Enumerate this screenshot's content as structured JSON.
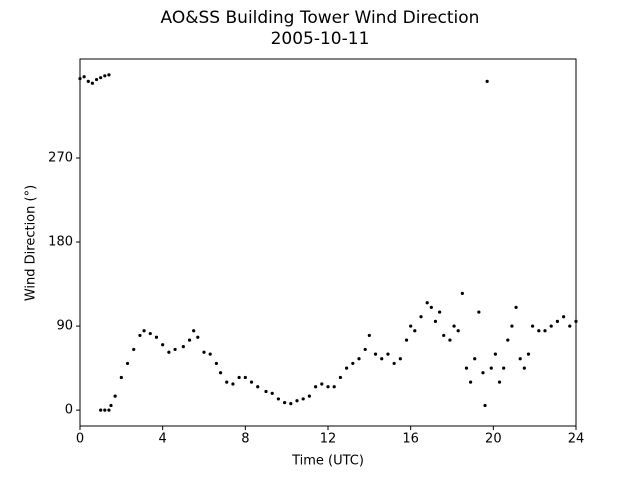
{
  "chart_data": {
    "type": "scatter",
    "title": "AO&SS Building Tower Wind Direction",
    "subtitle": "2005-10-11",
    "x_label": "Time (UTC)",
    "y_label": "Wind Direction (°)",
    "color": "#000000",
    "xlim": [
      0,
      24
    ],
    "xticks": [
      0,
      4,
      8,
      12,
      16,
      20,
      24
    ],
    "ylim": [
      -17,
      376
    ],
    "yticks": [
      0,
      90,
      180,
      270
    ],
    "grid": false,
    "x": [
      0.0,
      0.2,
      0.4,
      0.6,
      0.8,
      1.0,
      1.2,
      1.4,
      1.0,
      1.2,
      1.4,
      1.5,
      1.7,
      2.0,
      2.3,
      2.6,
      2.9,
      3.1,
      3.4,
      3.7,
      4.0,
      4.3,
      4.6,
      5.0,
      5.3,
      5.5,
      5.7,
      6.0,
      6.3,
      6.6,
      6.8,
      7.1,
      7.4,
      7.7,
      8.0,
      8.3,
      8.6,
      9.0,
      9.3,
      9.6,
      9.9,
      10.2,
      10.5,
      10.8,
      11.1,
      11.4,
      11.7,
      12.0,
      12.3,
      12.6,
      12.9,
      13.2,
      13.5,
      13.8,
      14.0,
      14.3,
      14.6,
      14.9,
      15.2,
      15.5,
      15.8,
      16.0,
      16.2,
      16.5,
      16.8,
      17.0,
      17.2,
      17.4,
      17.6,
      17.9,
      18.1,
      18.3,
      18.5,
      18.7,
      18.9,
      19.1,
      19.3,
      19.5,
      19.6,
      19.7,
      19.9,
      20.1,
      20.3,
      20.5,
      20.7,
      20.9,
      21.1,
      21.3,
      21.5,
      21.7,
      21.9,
      22.2,
      22.5,
      22.8,
      23.1,
      23.4,
      23.7,
      24.0
    ],
    "values": [
      355,
      357,
      352,
      350,
      354,
      356,
      358,
      359,
      0,
      0,
      0,
      5,
      15,
      35,
      50,
      65,
      80,
      85,
      82,
      78,
      70,
      62,
      65,
      68,
      75,
      85,
      78,
      62,
      60,
      50,
      40,
      30,
      28,
      35,
      35,
      30,
      25,
      20,
      18,
      12,
      8,
      7,
      10,
      12,
      15,
      25,
      28,
      25,
      25,
      35,
      45,
      50,
      55,
      65,
      80,
      60,
      55,
      60,
      50,
      55,
      75,
      90,
      85,
      100,
      115,
      110,
      95,
      105,
      80,
      75,
      90,
      85,
      125,
      45,
      30,
      55,
      105,
      40,
      5,
      352,
      45,
      60,
      30,
      45,
      75,
      90,
      110,
      55,
      45,
      60,
      90,
      85,
      85,
      90,
      95,
      100,
      90,
      95
    ]
  }
}
